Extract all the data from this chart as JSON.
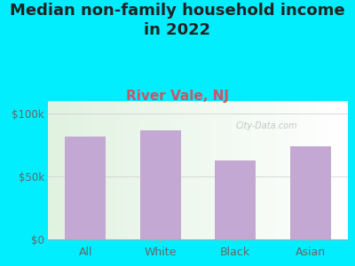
{
  "title": "Median non-family household income\nin 2022",
  "subtitle": "River Vale, NJ",
  "categories": [
    "All",
    "White",
    "Black",
    "Asian"
  ],
  "values": [
    82000,
    87000,
    63000,
    74000
  ],
  "bar_color": "#c4a8d4",
  "background_color": "#00EEFF",
  "title_fontsize": 13,
  "subtitle_fontsize": 11,
  "tick_color": "#666666",
  "yticks": [
    0,
    50000,
    100000
  ],
  "ytick_labels": [
    "$0",
    "$50k",
    "$100k"
  ],
  "ylim": [
    0,
    110000
  ],
  "watermark": "City-Data.com"
}
